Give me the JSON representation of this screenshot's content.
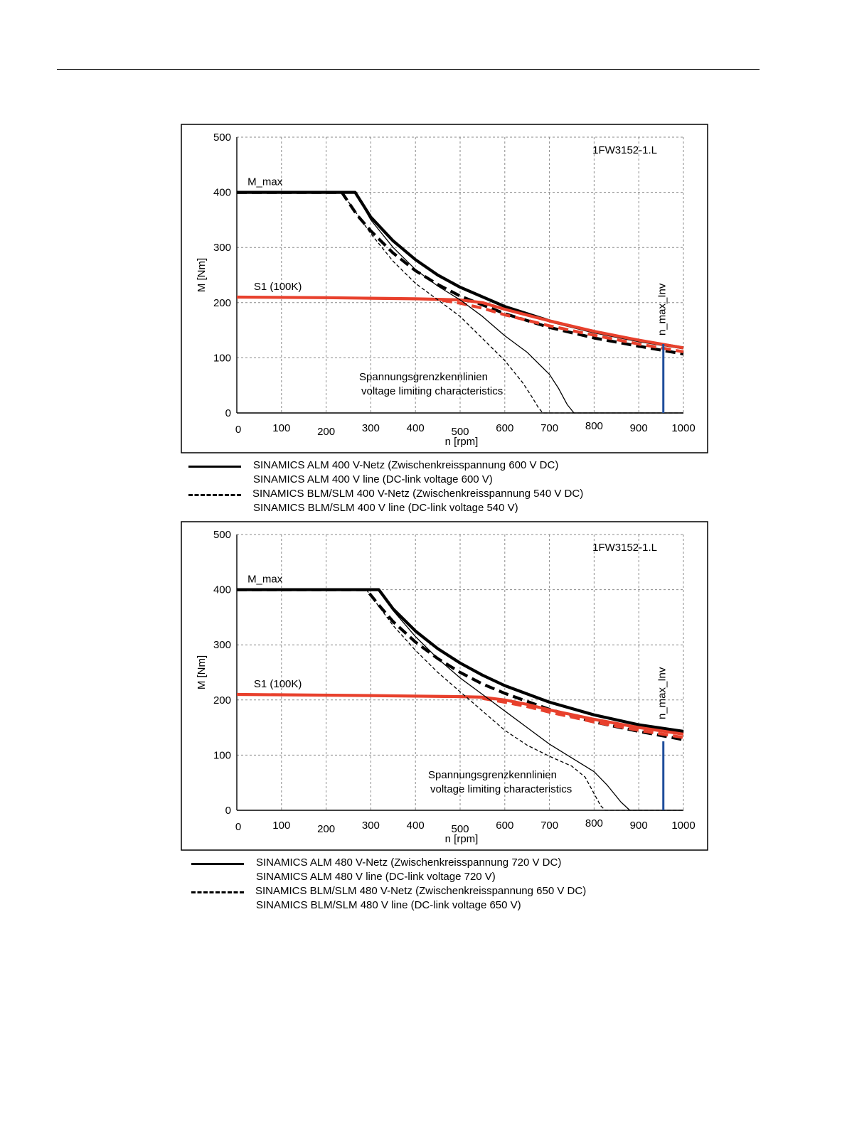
{
  "chart_data": [
    {
      "type": "line",
      "model_label": "1FW3152-1.L",
      "xlabel": "n [rpm]",
      "ylabel": "M [Nm]",
      "xlim": [
        0,
        1000
      ],
      "ylim": [
        0,
        500
      ],
      "x_ticks": [
        0,
        100,
        200,
        300,
        400,
        500,
        600,
        700,
        800,
        900,
        1000
      ],
      "y_ticks": [
        0,
        100,
        200,
        300,
        400,
        500
      ],
      "grid": true,
      "annotations": {
        "mmax": "M_max",
        "s1": "S1 (100K)",
        "vlim_de": "Spannungsgrenzkennlinien",
        "vlim_en": "voltage limiting characteristics",
        "nmax": "n_max_Inv"
      },
      "n_max_inv": 955,
      "series": [
        {
          "style": "black-solid-thick",
          "x": [
            0,
            265,
            300,
            350,
            400,
            450,
            500,
            600,
            700,
            800,
            900,
            1000
          ],
          "y": [
            400,
            400,
            355,
            312,
            278,
            250,
            228,
            193,
            167,
            147,
            131,
            118
          ]
        },
        {
          "style": "black-dashed-thick",
          "x": [
            0,
            235,
            270,
            300,
            350,
            400,
            450,
            500,
            600,
            700,
            800,
            900,
            1000
          ],
          "y": [
            400,
            400,
            358,
            330,
            290,
            258,
            233,
            212,
            180,
            155,
            136,
            121,
            107
          ]
        },
        {
          "style": "red-solid-thick",
          "x": [
            0,
            200,
            300,
            400,
            450,
            500,
            550,
            600,
            700,
            800,
            900,
            1000
          ],
          "y": [
            210,
            209,
            208,
            207,
            206,
            205,
            200,
            188,
            167,
            148,
            132,
            118
          ]
        },
        {
          "style": "red-dashed-thick",
          "x": [
            460,
            500,
            550,
            600,
            700,
            800,
            900,
            1000
          ],
          "y": [
            204,
            199,
            190,
            178,
            158,
            141,
            125,
            111
          ]
        },
        {
          "style": "black-solid-thin",
          "x": [
            265,
            300,
            350,
            400,
            450,
            500,
            550,
            600,
            650,
            700,
            720,
            740,
            755,
            1000
          ],
          "y": [
            400,
            350,
            300,
            260,
            230,
            205,
            175,
            140,
            110,
            70,
            45,
            15,
            0,
            0
          ]
        },
        {
          "style": "black-dashed-thin",
          "x": [
            235,
            300,
            350,
            400,
            450,
            500,
            550,
            600,
            640,
            660,
            675,
            685,
            1000
          ],
          "y": [
            400,
            325,
            275,
            235,
            205,
            175,
            135,
            95,
            55,
            30,
            10,
            0,
            0
          ]
        }
      ],
      "legend": [
        {
          "style": "solid",
          "line1": "SINAMICS ALM  400 V-Netz (Zwischenkreisspannung 600 V DC)",
          "line2": "SINAMICS ALM  400 V line (DC-link voltage 600 V)"
        },
        {
          "style": "dashed",
          "line1": "SINAMICS BLM/SLM  400 V-Netz (Zwischenkreisspannung 540 V DC)",
          "line2": "SINAMICS BLM/SLM  400 V line (DC-link voltage 540 V)"
        }
      ]
    },
    {
      "type": "line",
      "model_label": "1FW3152-1.L",
      "xlabel": "n [rpm]",
      "ylabel": "M [Nm]",
      "xlim": [
        0,
        1000
      ],
      "ylim": [
        0,
        500
      ],
      "x_ticks": [
        0,
        100,
        200,
        300,
        400,
        500,
        600,
        700,
        800,
        900,
        1000
      ],
      "y_ticks": [
        0,
        100,
        200,
        300,
        400,
        500
      ],
      "grid": true,
      "annotations": {
        "mmax": "M_max",
        "s1": "S1 (100K)",
        "vlim_de": "Spannungsgrenzkennlinien",
        "vlim_en": "voltage limiting characteristics",
        "nmax": "n_max_Inv"
      },
      "n_max_inv": 955,
      "series": [
        {
          "style": "black-solid-thick",
          "x": [
            0,
            318,
            350,
            400,
            450,
            500,
            550,
            600,
            700,
            800,
            900,
            1000
          ],
          "y": [
            400,
            400,
            365,
            325,
            293,
            267,
            245,
            226,
            196,
            173,
            155,
            143
          ]
        },
        {
          "style": "black-dashed-thick",
          "x": [
            0,
            290,
            320,
            350,
            400,
            450,
            500,
            550,
            600,
            700,
            800,
            900,
            1000
          ],
          "y": [
            400,
            400,
            370,
            342,
            305,
            275,
            250,
            229,
            212,
            183,
            160,
            143,
            128
          ]
        },
        {
          "style": "red-solid-thick",
          "x": [
            0,
            300,
            500,
            550,
            600,
            650,
            700,
            800,
            900,
            1000
          ],
          "y": [
            210,
            208,
            206,
            205,
            200,
            192,
            182,
            165,
            150,
            138
          ]
        },
        {
          "style": "red-dashed-thick",
          "x": [
            550,
            600,
            650,
            700,
            800,
            900,
            1000
          ],
          "y": [
            203,
            196,
            188,
            178,
            160,
            145,
            132
          ]
        },
        {
          "style": "black-solid-thin",
          "x": [
            318,
            350,
            400,
            450,
            500,
            550,
            600,
            650,
            700,
            750,
            800,
            830,
            860,
            880,
            1000
          ],
          "y": [
            400,
            362,
            315,
            275,
            240,
            210,
            180,
            150,
            120,
            95,
            70,
            45,
            15,
            0,
            0
          ]
        },
        {
          "style": "black-dashed-thin",
          "x": [
            290,
            350,
            400,
            450,
            500,
            550,
            600,
            650,
            700,
            750,
            780,
            800,
            815,
            825,
            1000
          ],
          "y": [
            400,
            335,
            290,
            250,
            215,
            180,
            145,
            118,
            98,
            80,
            60,
            30,
            8,
            0,
            0
          ]
        }
      ],
      "legend": [
        {
          "style": "solid",
          "line1": "SINAMICS ALM  480 V-Netz (Zwischenkreisspannung 720 V DC)",
          "line2": "SINAMICS ALM  480 V line (DC-link voltage 720 V)"
        },
        {
          "style": "dashed",
          "line1": "SINAMICS BLM/SLM  480 V-Netz (Zwischenkreisspannung 650 V DC)",
          "line2": "SINAMICS BLM/SLM  480 V line (DC-link voltage 650 V)"
        }
      ]
    }
  ]
}
